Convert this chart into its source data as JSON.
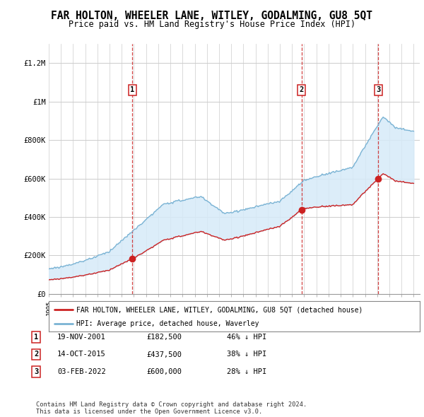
{
  "title": "FAR HOLTON, WHEELER LANE, WITLEY, GODALMING, GU8 5QT",
  "subtitle": "Price paid vs. HM Land Registry's House Price Index (HPI)",
  "title_fontsize": 10.5,
  "subtitle_fontsize": 8.5,
  "background_color": "#ffffff",
  "plot_bg_color": "#ffffff",
  "grid_color": "#cccccc",
  "ylim": [
    0,
    1300000
  ],
  "yticks": [
    0,
    200000,
    400000,
    600000,
    800000,
    1000000,
    1200000
  ],
  "ytick_labels": [
    "£0",
    "£200K",
    "£400K",
    "£600K",
    "£800K",
    "£1M",
    "£1.2M"
  ],
  "hpi_color": "#7ab3d4",
  "hpi_fill_color": "#d6eaf8",
  "sale_color": "#cc2222",
  "vline_color": "#cc2222",
  "sale_points": [
    {
      "date_num": 2001.88,
      "price": 182500,
      "label": "1"
    },
    {
      "date_num": 2015.78,
      "price": 437500,
      "label": "2"
    },
    {
      "date_num": 2022.09,
      "price": 600000,
      "label": "3"
    }
  ],
  "legend_entries": [
    "FAR HOLTON, WHEELER LANE, WITLEY, GODALMING, GU8 5QT (detached house)",
    "HPI: Average price, detached house, Waverley"
  ],
  "table_rows": [
    {
      "num": "1",
      "date": "19-NOV-2001",
      "price": "£182,500",
      "hpi": "46% ↓ HPI"
    },
    {
      "num": "2",
      "date": "14-OCT-2015",
      "price": "£437,500",
      "hpi": "38% ↓ HPI"
    },
    {
      "num": "3",
      "date": "03-FEB-2022",
      "price": "£600,000",
      "hpi": "28% ↓ HPI"
    }
  ],
  "footnote1": "Contains HM Land Registry data © Crown copyright and database right 2024.",
  "footnote2": "This data is licensed under the Open Government Licence v3.0."
}
